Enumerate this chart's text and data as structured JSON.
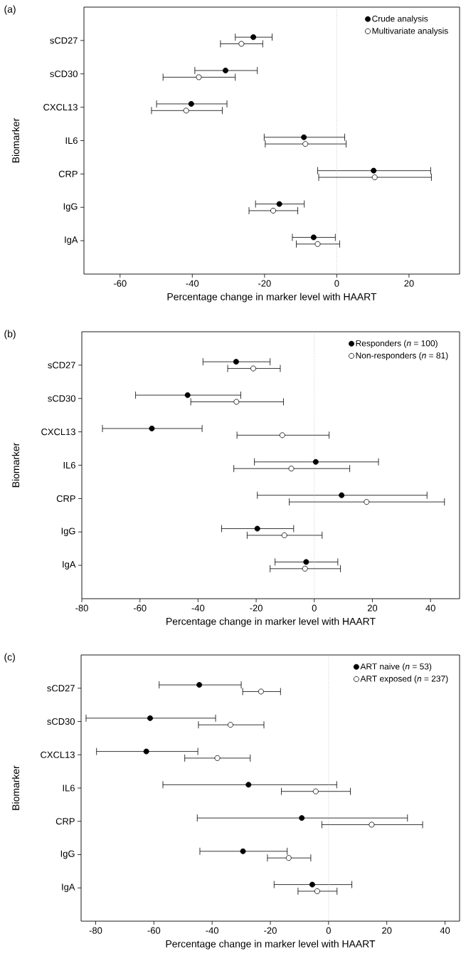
{
  "chart_data": [
    {
      "type": "scatter",
      "orientation": "horizontal",
      "title": "(a)",
      "xlabel": "Percentage change in marker level with HAART",
      "ylabel": "Biomarker",
      "categories": [
        "sCD27",
        "sCD30",
        "CXCL13",
        "IL6",
        "CRP",
        "IgG",
        "IgA"
      ],
      "series": [
        {
          "name": "Crude analysis",
          "color": "#000000",
          "values": [
            -23.1,
            -30.8,
            -40.3,
            -9.1,
            10.2,
            -15.9,
            -6.4
          ],
          "errors": [
            [
              -28.1,
              -17.9
            ],
            [
              -39.3,
              -22.0
            ],
            [
              -49.9,
              -30.4
            ],
            [
              -20.1,
              2.2
            ],
            [
              -5.3,
              26.0
            ],
            [
              -22.5,
              -9.0
            ],
            [
              -12.3,
              -0.4
            ]
          ]
        },
        {
          "name": "Multivariate analysis",
          "color": "#ffffff",
          "values": [
            -26.4,
            -38.2,
            -41.7,
            -8.7,
            10.5,
            -17.6,
            -5.3
          ],
          "errors": [
            [
              -32.2,
              -20.5
            ],
            [
              -48.1,
              -28.1
            ],
            [
              -51.3,
              -31.7
            ],
            [
              -19.8,
              2.6
            ],
            [
              -5.0,
              26.2
            ],
            [
              -24.3,
              -10.8
            ],
            [
              -11.2,
              0.8
            ]
          ]
        }
      ],
      "xlim": [
        -70,
        34
      ],
      "xticks": [
        -60,
        -40,
        -20,
        0,
        20
      ],
      "ref_lines": [
        {
          "axis": "x",
          "value": 0,
          "color": "#999999",
          "line_style": "dotted"
        }
      ],
      "legend": "top right",
      "grid": false
    },
    {
      "type": "scatter",
      "orientation": "horizontal",
      "title": "(b)",
      "xlabel": "Percentage change in marker level with HAART",
      "ylabel": "Biomarker",
      "categories": [
        "sCD27",
        "sCD30",
        "CXCL13",
        "IL6",
        "CRP",
        "IgG",
        "IgA"
      ],
      "series": [
        {
          "name": "Responders (*n* = 100)",
          "color": "#000000",
          "values": [
            -26.9,
            -43.6,
            -55.9,
            0.5,
            9.4,
            -19.6,
            -2.8
          ],
          "errors": [
            [
              -38.3,
              -15.2
            ],
            [
              -61.5,
              -25.3
            ],
            [
              -72.9,
              -38.6
            ],
            [
              -20.6,
              22.1
            ],
            [
              -19.6,
              38.8
            ],
            [
              -31.9,
              -7.1
            ],
            [
              -13.5,
              8.1
            ]
          ]
        },
        {
          "name": "Non-responders (*n* = 81)",
          "color": "#ffffff",
          "values": [
            -21.0,
            -26.8,
            -11.0,
            -7.9,
            18.0,
            -10.3,
            -3.2
          ],
          "errors": [
            [
              -29.8,
              -11.7
            ],
            [
              -42.5,
              -10.6
            ],
            [
              -26.6,
              5.1
            ],
            [
              -27.7,
              12.2
            ],
            [
              -8.6,
              44.8
            ],
            [
              -23.1,
              2.7
            ],
            [
              -15.2,
              9.0
            ]
          ]
        }
      ],
      "xlim": [
        -80,
        50
      ],
      "xticks": [
        -80,
        -60,
        -40,
        -20,
        0,
        20,
        40
      ],
      "ref_lines": [
        {
          "axis": "x",
          "value": 0,
          "color": "#999999",
          "line_style": "dotted"
        }
      ],
      "legend": "top right",
      "grid": false
    },
    {
      "type": "scatter",
      "orientation": "horizontal",
      "title": "(c)",
      "xlabel": "Percentage change in marker level with HAART",
      "ylabel": "Biomarker",
      "categories": [
        "sCD27",
        "sCD30",
        "CXCL13",
        "IL6",
        "CRP",
        "IgG",
        "IgA"
      ],
      "series": [
        {
          "name": "ART naive (*n* = 53)",
          "color": "#000000",
          "values": [
            -44.4,
            -61.3,
            -62.6,
            -27.5,
            -9.2,
            -29.4,
            -5.6
          ],
          "errors": [
            [
              -58.2,
              -30.0
            ],
            [
              -83.3,
              -38.8
            ],
            [
              -79.7,
              -44.9
            ],
            [
              -56.9,
              2.8
            ],
            [
              -45.1,
              27.1
            ],
            [
              -44.2,
              -14.2
            ],
            [
              -18.7,
              8.0
            ]
          ]
        },
        {
          "name": "ART exposed (*n* = 237)",
          "color": "#ffffff",
          "values": [
            -23.2,
            -33.7,
            -38.2,
            -4.4,
            14.8,
            -13.7,
            -3.9
          ],
          "errors": [
            [
              -29.5,
              -16.5
            ],
            [
              -44.7,
              -22.2
            ],
            [
              -49.4,
              -26.9
            ],
            [
              -16.2,
              7.5
            ],
            [
              -2.3,
              32.3
            ],
            [
              -21.0,
              -6.1
            ],
            [
              -10.5,
              2.9
            ]
          ]
        }
      ],
      "xlim": [
        -85,
        45
      ],
      "xticks": [
        -80,
        -60,
        -40,
        -20,
        0,
        20,
        40
      ],
      "ref_lines": [
        {
          "axis": "x",
          "value": 0,
          "color": "#999999",
          "line_style": "dotted"
        }
      ],
      "legend": "top right",
      "grid": false
    }
  ]
}
